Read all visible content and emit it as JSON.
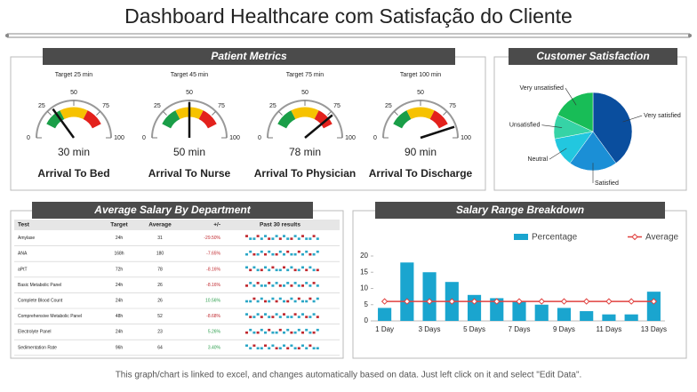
{
  "title": "Dashboard Healthcare com Satisfação do Cliente",
  "patient_metrics_title": "Patient Metrics",
  "footer": "This graph/chart is linked to excel, and changes automatically based on data. Just left click on it and select \"Edit Data\".",
  "chart_data": [
    {
      "type": "gauge",
      "title": "Arrival To Bed",
      "subtitle": "Target 25 min",
      "value": 30,
      "value_label": "30 min",
      "ylim": [
        0,
        100
      ],
      "yticks": [
        0,
        25,
        50,
        75,
        100
      ],
      "bands": [
        {
          "from": 15,
          "to": 35,
          "color": "#1a9e48"
        },
        {
          "from": 35,
          "to": 65,
          "color": "#f6c200"
        },
        {
          "from": 65,
          "to": 85,
          "color": "#e3211c"
        }
      ]
    },
    {
      "type": "gauge",
      "title": "Arrival To Nurse",
      "subtitle": "Target 45 min",
      "value": 50,
      "value_label": "50 min",
      "ylim": [
        0,
        100
      ],
      "yticks": [
        0,
        25,
        50,
        75,
        100
      ],
      "bands": [
        {
          "from": 15,
          "to": 35,
          "color": "#1a9e48"
        },
        {
          "from": 35,
          "to": 65,
          "color": "#f6c200"
        },
        {
          "from": 65,
          "to": 85,
          "color": "#e3211c"
        }
      ]
    },
    {
      "type": "gauge",
      "title": "Arrival To Physician",
      "subtitle": "Target 75 min",
      "value": 78,
      "value_label": "78 min",
      "ylim": [
        0,
        100
      ],
      "yticks": [
        0,
        25,
        50,
        75,
        100
      ],
      "bands": [
        {
          "from": 15,
          "to": 35,
          "color": "#1a9e48"
        },
        {
          "from": 35,
          "to": 65,
          "color": "#f6c200"
        },
        {
          "from": 65,
          "to": 85,
          "color": "#e3211c"
        }
      ]
    },
    {
      "type": "gauge",
      "title": "Arrival To Discharge",
      "subtitle": "Target 100 min",
      "value": 90,
      "value_label": "90 min",
      "ylim": [
        0,
        100
      ],
      "yticks": [
        0,
        25,
        50,
        75,
        100
      ],
      "bands": [
        {
          "from": 15,
          "to": 35,
          "color": "#1a9e48"
        },
        {
          "from": 35,
          "to": 65,
          "color": "#f6c200"
        },
        {
          "from": 65,
          "to": 85,
          "color": "#e3211c"
        }
      ]
    },
    {
      "type": "pie",
      "title": "Customer Satisfaction",
      "categories": [
        "Very satisfied",
        "Satisfied",
        "Neutral",
        "Unsatisfied",
        "Very unsatisfied"
      ],
      "values": [
        40,
        20,
        12,
        10,
        18
      ],
      "colors": [
        "#0a4e9e",
        "#1b8fd6",
        "#22c7df",
        "#36d3a6",
        "#18bd57"
      ]
    },
    {
      "type": "combo",
      "title": "Salary Range Breakdown",
      "categories": [
        "1 Day",
        null,
        "3 Days",
        null,
        "5 Days",
        null,
        "7 Days",
        null,
        "9 Days",
        null,
        "11 Days",
        null,
        "13 Days"
      ],
      "series": [
        {
          "name": "Percentage",
          "kind": "bar",
          "color": "#1aa5cf",
          "values": [
            4,
            18,
            15,
            12,
            8,
            7,
            6,
            5,
            4,
            3,
            2,
            2,
            9
          ]
        },
        {
          "name": "Average",
          "kind": "line",
          "color": "#e0413f",
          "values": [
            6,
            6,
            6,
            6,
            6,
            6,
            6,
            6,
            6,
            6,
            6,
            6,
            6
          ]
        }
      ],
      "ylim": [
        0,
        20
      ],
      "yticks": [
        0,
        5,
        10,
        15,
        20
      ],
      "grid": false,
      "legend": "top"
    }
  ],
  "table": {
    "title": "Average Salary By Department",
    "columns": [
      "Test",
      "Target",
      "Average",
      "+/-",
      "Past 30 results"
    ],
    "rows": [
      [
        "Amylase",
        "24h",
        31,
        "-29.50%"
      ],
      [
        "ANA",
        "168h",
        180,
        "-7.65%"
      ],
      [
        "aPtT",
        "72h",
        78,
        "-8.16%"
      ],
      [
        "Basic Metabolic Panel",
        "24h",
        26,
        "-8.16%"
      ],
      [
        "Complete Blood Count",
        "24h",
        26,
        "10.56%"
      ],
      [
        "Comprehensive Metabolic Panel",
        "48h",
        52,
        "-8.68%"
      ],
      [
        "Electrolyte Panel",
        "24h",
        23,
        "5.26%"
      ],
      [
        "Sedimentation Rate",
        "96h",
        64,
        "3.40%"
      ]
    ]
  }
}
